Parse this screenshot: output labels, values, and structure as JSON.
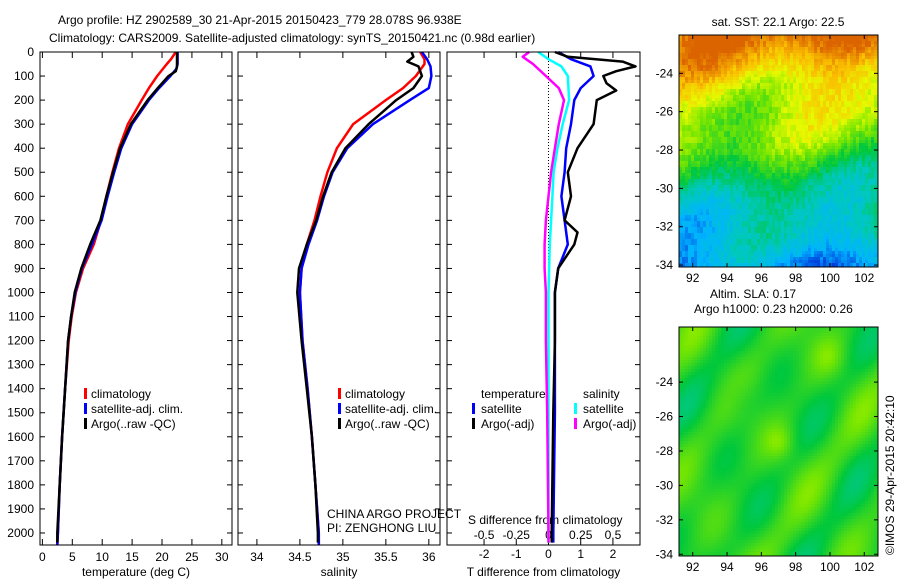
{
  "title_line1": "Argo profile: HZ 2902589_30 21-Apr-2015 20150423_779 28.078S 96.938E",
  "title_line2": "Climatology: CARS2009. Satellite-adjusted climatology: synTS_20150421.nc (0.98d earlier)",
  "colors": {
    "climatology": "#ff0000",
    "satellite": "#0000ff",
    "argo": "#000000",
    "s_satellite": "#00ffff",
    "s_argo": "#ff00ff"
  },
  "chart_data": [
    {
      "type": "line",
      "name": "temperature",
      "xlabel": "temperature (deg C)",
      "xlim": [
        -0.4,
        31.7
      ],
      "ylim": [
        2050,
        0
      ],
      "xticks": [
        0,
        5,
        10,
        15,
        20,
        25,
        30
      ],
      "yticks": [
        0,
        100,
        200,
        300,
        400,
        500,
        600,
        700,
        800,
        900,
        1000,
        1100,
        1200,
        1300,
        1400,
        1500,
        1600,
        1700,
        1800,
        1900,
        2000
      ],
      "legend": [
        "climatology",
        "satellite-adj. clim.",
        "Argo(..raw -QC)"
      ],
      "series": [
        {
          "name": "climatology",
          "color": "#ff0000",
          "depth": [
            0,
            30,
            50,
            100,
            150,
            200,
            300,
            400,
            500,
            600,
            700,
            800,
            900,
            1000,
            1100,
            1200,
            1400,
            1600,
            1800,
            2000,
            2050
          ],
          "values": [
            22.3,
            21.5,
            20.8,
            19.2,
            17.8,
            16.6,
            14.3,
            12.8,
            11.7,
            10.7,
            9.8,
            8.6,
            6.8,
            5.6,
            4.9,
            4.4,
            3.8,
            3.3,
            2.9,
            2.6,
            2.5
          ]
        },
        {
          "name": "satellite-adj. clim.",
          "color": "#0000ff",
          "depth": [
            0,
            50,
            70,
            100,
            150,
            200,
            300,
            400,
            500,
            600,
            700,
            800,
            900,
            1000,
            1100,
            1200,
            1400,
            1600,
            1800,
            2000,
            2050
          ],
          "values": [
            22.6,
            22.6,
            22.4,
            21.4,
            19.5,
            17.8,
            15.0,
            13.2,
            12.0,
            10.9,
            9.9,
            8.3,
            6.6,
            5.5,
            4.8,
            4.3,
            3.8,
            3.3,
            2.9,
            2.6,
            2.5
          ]
        },
        {
          "name": "Argo(..raw -QC)",
          "color": "#000000",
          "depth": [
            0,
            60,
            80,
            100,
            150,
            200,
            300,
            400,
            500,
            600,
            700,
            800,
            900,
            1000,
            1100,
            1200,
            1400,
            1600,
            1800,
            2000,
            2040
          ],
          "values": [
            22.5,
            22.5,
            22.3,
            21.1,
            19.3,
            17.6,
            14.8,
            13.0,
            11.8,
            10.7,
            9.7,
            8.0,
            6.5,
            5.4,
            4.8,
            4.3,
            3.8,
            3.3,
            2.9,
            2.5,
            2.5
          ]
        }
      ]
    },
    {
      "type": "line",
      "name": "salinity",
      "xlabel": "salinity",
      "xlim": [
        33.78,
        36.13
      ],
      "ylim": [
        2050,
        0
      ],
      "xticks": [
        34,
        34.5,
        35,
        35.5,
        36
      ],
      "legend": [
        "climatology",
        "satellite-adj. clim.",
        "Argo(..raw -QC)"
      ],
      "annotation": [
        "CHINA ARGO PROJECT",
        "PI: ZENGHONG LIU"
      ],
      "series": [
        {
          "name": "climatology",
          "color": "#ff0000",
          "depth": [
            0,
            30,
            50,
            100,
            150,
            200,
            300,
            400,
            500,
            600,
            700,
            800,
            900,
            1000,
            1200,
            1400,
            1600,
            1800,
            2000,
            2050
          ],
          "values": [
            35.9,
            35.95,
            35.95,
            35.85,
            35.7,
            35.5,
            35.12,
            34.93,
            34.82,
            34.74,
            34.67,
            34.58,
            34.52,
            34.5,
            34.53,
            34.59,
            34.64,
            34.68,
            34.72,
            34.72
          ]
        },
        {
          "name": "satellite-adj. clim.",
          "color": "#0000ff",
          "depth": [
            0,
            30,
            60,
            100,
            150,
            200,
            300,
            400,
            500,
            600,
            700,
            800,
            900,
            1000,
            1200,
            1400,
            1600,
            1800,
            2000,
            2050
          ],
          "values": [
            35.92,
            35.98,
            36.02,
            36.03,
            36.0,
            35.78,
            35.35,
            35.05,
            34.88,
            34.78,
            34.7,
            34.6,
            34.52,
            34.5,
            34.53,
            34.59,
            34.64,
            34.68,
            34.72,
            34.72
          ]
        },
        {
          "name": "Argo(..raw -QC)",
          "color": "#000000",
          "depth": [
            0,
            20,
            40,
            60,
            100,
            150,
            200,
            300,
            400,
            500,
            600,
            700,
            800,
            900,
            1000,
            1200,
            1400,
            1600,
            1800,
            2000,
            2040
          ],
          "values": [
            35.8,
            35.82,
            35.75,
            35.88,
            35.92,
            35.82,
            35.62,
            35.3,
            35.03,
            34.87,
            34.77,
            34.69,
            34.58,
            34.49,
            34.47,
            34.52,
            34.58,
            34.64,
            34.68,
            34.71,
            34.71
          ]
        }
      ]
    },
    {
      "type": "line",
      "name": "difference",
      "xlabel": "T difference from climatology",
      "x2label": "S difference from climatology",
      "xlim": [
        -3.15,
        2.84
      ],
      "ylim": [
        2050,
        0
      ],
      "xticks": [
        -2,
        -1,
        0,
        1,
        2
      ],
      "x2ticks": [
        -0.5,
        -0.25,
        0,
        0.25,
        0.5
      ],
      "x2_tick_labels": [
        "-0.5",
        "-0.25",
        "0",
        "0.25",
        "0.5"
      ],
      "legend_titles": [
        "temperature",
        "salinity"
      ],
      "legend": [
        "satellite",
        "Argo(-adj)",
        "satellite",
        "Argo(-adj)"
      ],
      "series": [
        {
          "name": "T satellite",
          "group": "temperature",
          "unit": "T",
          "color": "#0000ff",
          "depth": [
            0,
            30,
            60,
            100,
            150,
            200,
            300,
            400,
            500,
            600,
            700,
            800,
            900,
            1000,
            1200,
            1500,
            2000,
            2040
          ],
          "values": [
            0.3,
            0.7,
            1.3,
            1.4,
            1.0,
            0.8,
            0.7,
            0.55,
            0.5,
            0.4,
            0.5,
            0.6,
            0.3,
            0.2,
            0.2,
            0.2,
            0.15,
            0.15
          ]
        },
        {
          "name": "T Argo(-adj)",
          "group": "temperature",
          "unit": "T",
          "color": "#000000",
          "depth": [
            0,
            20,
            40,
            60,
            80,
            100,
            130,
            160,
            200,
            300,
            400,
            500,
            600,
            700,
            750,
            800,
            900,
            1000,
            1200,
            1500,
            2000,
            2040
          ],
          "values": [
            0.2,
            0.6,
            2.3,
            2.7,
            2.1,
            1.7,
            1.8,
            2.1,
            1.5,
            1.4,
            0.9,
            0.6,
            0.7,
            0.5,
            0.9,
            0.8,
            0.3,
            0.2,
            0.2,
            0.15,
            0.1,
            0.1
          ]
        },
        {
          "name": "S satellite",
          "group": "salinity",
          "unit": "S",
          "color": "#00ffff",
          "depth": [
            0,
            30,
            60,
            100,
            200,
            300,
            400,
            500,
            600,
            700,
            800,
            1000,
            1200,
            1500,
            2000,
            2040
          ],
          "values": [
            -0.08,
            0.0,
            0.1,
            0.15,
            0.16,
            0.11,
            0.07,
            0.04,
            0.03,
            0.02,
            0.01,
            0.0,
            0.0,
            0.0,
            0.0,
            0.0
          ]
        },
        {
          "name": "S Argo(-adj)",
          "group": "salinity",
          "unit": "S",
          "color": "#ff00ff",
          "depth": [
            0,
            20,
            50,
            100,
            150,
            200,
            300,
            400,
            500,
            600,
            700,
            800,
            900,
            1000,
            1200,
            1500,
            2000,
            2040
          ],
          "values": [
            -0.15,
            -0.2,
            -0.12,
            -0.02,
            0.08,
            0.12,
            0.08,
            0.05,
            0.02,
            0.0,
            -0.02,
            -0.03,
            -0.03,
            -0.02,
            -0.02,
            -0.01,
            0.0,
            0.0
          ]
        }
      ]
    },
    {
      "type": "heatmap",
      "name": "sst_map",
      "title": "sat. SST: 22.1 Argo: 22.5",
      "xlim": [
        91.2,
        102.8
      ],
      "ylim": [
        -22.0,
        -34.1
      ],
      "xticks": [
        92,
        94,
        96,
        98,
        100,
        102
      ],
      "yticks": [
        -24,
        -26,
        -28,
        -30,
        -32,
        -34
      ]
    },
    {
      "type": "heatmap",
      "name": "sla_map",
      "title": [
        "Altim. SLA: 0.17",
        "Argo h1000: 0.23 h2000: 0.26"
      ],
      "xlim": [
        91.2,
        102.8
      ],
      "ylim": [
        -20.8,
        -34.1
      ],
      "xticks": [
        92,
        94,
        96,
        98,
        100,
        102
      ],
      "yticks": [
        -24,
        -26,
        -28,
        -30,
        -32,
        -34
      ]
    }
  ],
  "credit": "©IMOS 29-Apr-2015 20:42:10"
}
